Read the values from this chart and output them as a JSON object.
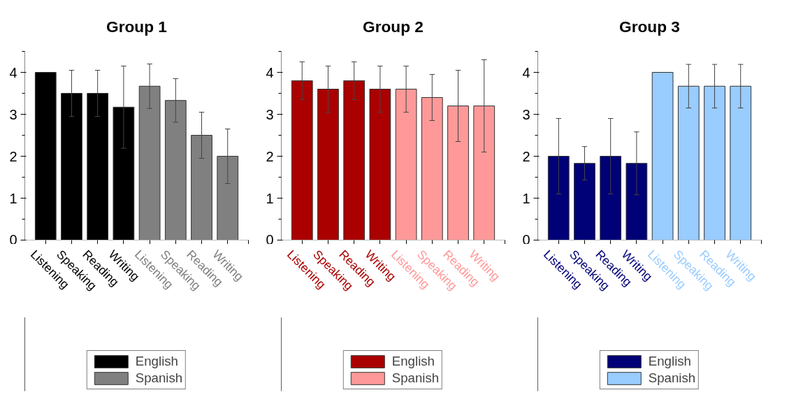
{
  "chart_data": [
    {
      "type": "bar",
      "title": "Group 1",
      "categories": [
        "Listening",
        "Speaking",
        "Reading",
        "Writing",
        "Listening",
        "Speaking",
        "Reading",
        "Writing"
      ],
      "ylim": [
        0,
        4.5
      ],
      "yticks": [
        0,
        1,
        2,
        3,
        4
      ],
      "grid": false,
      "legend": "bottom",
      "series": [
        {
          "name": "English",
          "color": "#000000",
          "values": [
            4.0,
            3.5,
            3.5,
            3.17,
            null,
            null,
            null,
            null
          ],
          "errors": [
            null,
            0.55,
            0.55,
            0.98,
            null,
            null,
            null,
            null
          ]
        },
        {
          "name": "Spanish",
          "color": "#808080",
          "values": [
            null,
            null,
            null,
            null,
            3.67,
            3.33,
            2.5,
            2.0
          ],
          "errors": [
            null,
            null,
            null,
            null,
            0.53,
            0.52,
            0.55,
            0.65
          ]
        }
      ]
    },
    {
      "type": "bar",
      "title": "Group 2",
      "categories": [
        "Listening",
        "Speaking",
        "Reading",
        "Writing",
        "Listening",
        "Speaking",
        "Reading",
        "Writing"
      ],
      "ylim": [
        0,
        4.5
      ],
      "yticks": [
        0,
        1,
        2,
        3,
        4
      ],
      "grid": false,
      "legend": "bottom",
      "series": [
        {
          "name": "English",
          "color": "#aa0000",
          "values": [
            3.8,
            3.6,
            3.8,
            3.6,
            null,
            null,
            null,
            null
          ],
          "errors": [
            0.45,
            0.55,
            0.45,
            0.55,
            null,
            null,
            null,
            null
          ]
        },
        {
          "name": "Spanish",
          "color": "#ff9999",
          "values": [
            null,
            null,
            null,
            null,
            3.6,
            3.4,
            3.2,
            3.2
          ],
          "errors": [
            null,
            null,
            null,
            null,
            0.55,
            0.55,
            0.85,
            1.1
          ]
        }
      ]
    },
    {
      "type": "bar",
      "title": "Group 3",
      "categories": [
        "Listening",
        "Speaking",
        "Reading",
        "Writing",
        "Listening",
        "Speaking",
        "Reading",
        "Writing"
      ],
      "ylim": [
        0,
        4.5
      ],
      "yticks": [
        0,
        1,
        2,
        3,
        4
      ],
      "grid": false,
      "legend": "bottom",
      "series": [
        {
          "name": "English",
          "color": "#000077",
          "values": [
            2.0,
            1.83,
            2.0,
            1.83,
            null,
            null,
            null,
            null
          ],
          "errors": [
            0.9,
            0.4,
            0.9,
            0.75,
            null,
            null,
            null,
            null
          ]
        },
        {
          "name": "Spanish",
          "color": "#99ccff",
          "values": [
            null,
            null,
            null,
            null,
            4.0,
            3.67,
            3.67,
            3.67
          ],
          "errors": [
            null,
            null,
            null,
            null,
            null,
            0.52,
            0.52,
            0.52
          ]
        }
      ]
    }
  ]
}
